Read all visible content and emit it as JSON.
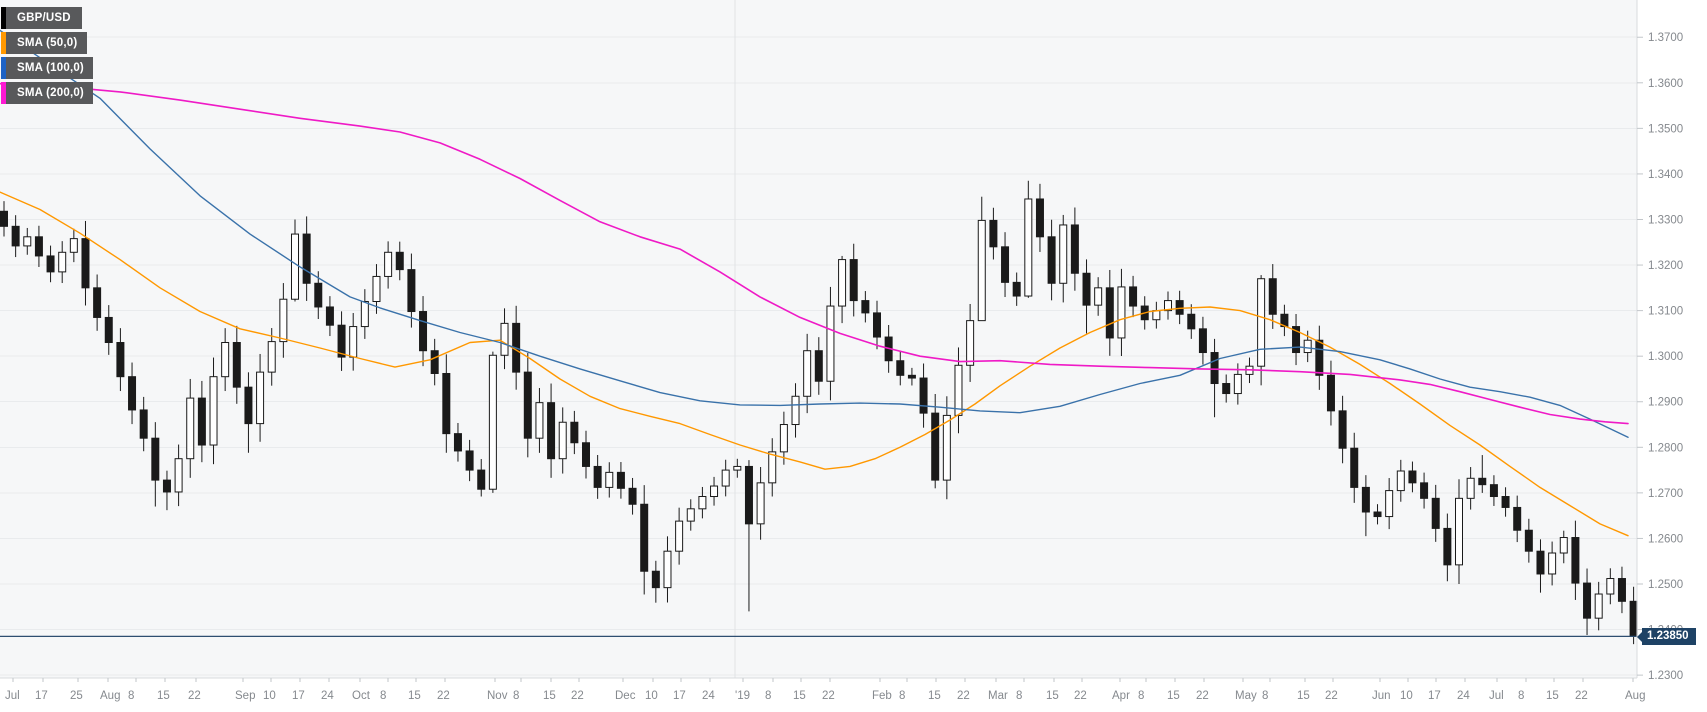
{
  "legend": {
    "items": [
      {
        "label": "GBP/USD",
        "swatch_color": "#000000"
      },
      {
        "label": "SMA (50,0)",
        "swatch_color": "#ff9800"
      },
      {
        "label": "SMA (100,0)",
        "swatch_color": "#1d62c4"
      },
      {
        "label": "SMA (200,0)",
        "swatch_color": "#fd18d2"
      }
    ]
  },
  "price_tag": {
    "value": "1.23850"
  },
  "price_axis": {
    "labels": [
      "1.3700",
      "1.3600",
      "1.3500",
      "1.3400",
      "1.3300",
      "1.3200",
      "1.3100",
      "1.3000",
      "1.2900",
      "1.2800",
      "1.2700",
      "1.2600",
      "1.2500",
      "1.2400",
      "1.2300"
    ]
  },
  "time_axis": {
    "labels": [
      [
        "Jul",
        5
      ],
      [
        "17",
        35
      ],
      [
        "25",
        70
      ],
      [
        "Aug",
        100
      ],
      [
        "8",
        128
      ],
      [
        "15",
        157
      ],
      [
        "22",
        188
      ],
      [
        "Sep",
        235
      ],
      [
        "10",
        263
      ],
      [
        "17",
        292
      ],
      [
        "24",
        321
      ],
      [
        "Oct",
        352
      ],
      [
        "8",
        380
      ],
      [
        "15",
        408
      ],
      [
        "22",
        437
      ],
      [
        "Nov",
        487
      ],
      [
        "8",
        513
      ],
      [
        "15",
        543
      ],
      [
        "22",
        571
      ],
      [
        "Dec",
        615
      ],
      [
        "10",
        645
      ],
      [
        "17",
        673
      ],
      [
        "24",
        702
      ],
      [
        "'19",
        735
      ],
      [
        "8",
        765
      ],
      [
        "15",
        793
      ],
      [
        "22",
        822
      ],
      [
        "Feb",
        872
      ],
      [
        "8",
        899
      ],
      [
        "15",
        928
      ],
      [
        "22",
        957
      ],
      [
        "Mar",
        988
      ],
      [
        "8",
        1016
      ],
      [
        "15",
        1046
      ],
      [
        "22",
        1074
      ],
      [
        "Apr",
        1112
      ],
      [
        "8",
        1138
      ],
      [
        "15",
        1167
      ],
      [
        "22",
        1196
      ],
      [
        "May",
        1235
      ],
      [
        "8",
        1262
      ],
      [
        "15",
        1297
      ],
      [
        "22",
        1325
      ],
      [
        "Jun",
        1372
      ],
      [
        "10",
        1400
      ],
      [
        "17",
        1428
      ],
      [
        "24",
        1457
      ],
      [
        "Jul",
        1489
      ],
      [
        "8",
        1518
      ],
      [
        "15",
        1546
      ],
      [
        "22",
        1575
      ],
      [
        "Aug",
        1625
      ]
    ],
    "year_break_x": 735
  },
  "style": {
    "plot_bg": "#f6f7f8",
    "grid": "#e9ebed",
    "year_grid": "#e1e3e5",
    "axis_line": "#d8dbde",
    "tick": "#c2c6ca",
    "axis_text": "#85898e",
    "candle_up": "#ffffff",
    "candle_down": "#1a1a1a",
    "candle_border": "#1a1a1a",
    "price_line": "#2e4e70",
    "tag_bg": "#1e4265",
    "tag_text": "#ffffff"
  },
  "chart_data": {
    "type": "candlestick",
    "symbol": "GBP/USD",
    "timeframe_hint": "daily, Jul 2018 - Aug 2019",
    "current_price": 1.2385,
    "ylim": [
      1.2295,
      1.3715
    ],
    "grid_step": 0.01,
    "candle_x_start": 4,
    "candle_x_step": 11.64,
    "open_first": 1.3318,
    "closes": [
      1.3285,
      1.3242,
      1.3262,
      1.322,
      1.3185,
      1.3228,
      1.3258,
      1.315,
      1.3085,
      1.303,
      1.2955,
      1.2882,
      1.282,
      1.2728,
      1.2702,
      1.2775,
      1.2908,
      1.2805,
      1.2955,
      1.303,
      1.2932,
      1.2852,
      1.2965,
      1.3032,
      1.3125,
      1.3268,
      1.316,
      1.3108,
      1.3068,
      1.2998,
      1.3065,
      1.312,
      1.3175,
      1.3228,
      1.319,
      1.3098,
      1.3012,
      1.2962,
      1.283,
      1.2792,
      1.275,
      1.2708,
      1.3002,
      1.3072,
      1.2965,
      1.282,
      1.2898,
      1.2775,
      1.2855,
      1.281,
      1.2758,
      1.2712,
      1.2745,
      1.271,
      1.2675,
      1.2528,
      1.2492,
      1.2572,
      1.2638,
      1.2665,
      1.2692,
      1.2715,
      1.275,
      1.2758,
      1.2632,
      1.2722,
      1.279,
      1.285,
      1.2912,
      1.3012,
      1.2945,
      1.311,
      1.3212,
      1.3122,
      1.3095,
      1.3042,
      1.299,
      1.2958,
      1.2952,
      1.2875,
      1.2728,
      1.287,
      1.298,
      1.3078,
      1.3298,
      1.324,
      1.3162,
      1.3132,
      1.3345,
      1.3262,
      1.316,
      1.3288,
      1.3182,
      1.3112,
      1.315,
      1.304,
      1.3152,
      1.311,
      1.308,
      1.31,
      1.3122,
      1.3092,
      1.306,
      1.3008,
      1.294,
      1.2918,
      1.296,
      1.2978,
      1.317,
      1.3092,
      1.3065,
      1.3008,
      1.3035,
      1.2958,
      1.288,
      1.2798,
      1.2712,
      1.2658,
      1.2648,
      1.2705,
      1.2748,
      1.2722,
      1.2688,
      1.2622,
      1.2542,
      1.2688,
      1.2732,
      1.2718,
      1.2692,
      1.2668,
      1.2618,
      1.2572,
      1.2522,
      1.2568,
      1.2602,
      1.2502,
      1.2425,
      1.2478,
      1.2512,
      1.2462,
      1.2385
    ],
    "wick_overrides": {
      "13": [
        null,
        1.267
      ],
      "14": [
        null,
        1.2662
      ],
      "21": [
        null,
        1.2788
      ],
      "25": [
        1.33,
        1.312
      ],
      "33": [
        1.3252,
        null
      ],
      "41": [
        null,
        1.2692
      ],
      "42": [
        1.301,
        1.27
      ],
      "43": [
        1.3105,
        null
      ],
      "47": [
        null,
        1.2733
      ],
      "55": [
        null,
        1.2477
      ],
      "56": [
        null,
        1.2459
      ],
      "64": [
        1.2772,
        1.244
      ],
      "72": [
        1.322,
        null
      ],
      "80": [
        null,
        1.271
      ],
      "84": [
        1.335,
        1.3095
      ],
      "88": [
        1.3385,
        1.3128
      ],
      "91": [
        1.331,
        null
      ],
      "93": [
        null,
        1.305
      ],
      "104": [
        null,
        1.2866
      ],
      "108": [
        1.3178,
        null
      ],
      "117": [
        null,
        1.2605
      ],
      "124": [
        null,
        1.2506
      ],
      "127": [
        1.2783,
        null
      ],
      "132": [
        null,
        1.2481
      ],
      "134": [
        1.2617,
        null
      ],
      "136": [
        null,
        1.2388
      ],
      "140": [
        null,
        1.2368
      ]
    },
    "overlays": [
      {
        "name": "SMA (50,0)",
        "color": "#ff9800",
        "width": 1.4,
        "points": [
          [
            0,
            1.336
          ],
          [
            40,
            1.3322
          ],
          [
            80,
            1.327
          ],
          [
            120,
            1.3212
          ],
          [
            160,
            1.315
          ],
          [
            200,
            1.3098
          ],
          [
            240,
            1.306
          ],
          [
            280,
            1.304
          ],
          [
            320,
            1.3018
          ],
          [
            360,
            1.2995
          ],
          [
            395,
            1.2976
          ],
          [
            430,
            1.2992
          ],
          [
            470,
            1.303
          ],
          [
            500,
            1.3035
          ],
          [
            530,
            1.2995
          ],
          [
            560,
            1.295
          ],
          [
            590,
            1.2912
          ],
          [
            620,
            1.2885
          ],
          [
            650,
            1.2868
          ],
          [
            680,
            1.2852
          ],
          [
            710,
            1.2828
          ],
          [
            740,
            1.2805
          ],
          [
            770,
            1.2785
          ],
          [
            800,
            1.2768
          ],
          [
            825,
            1.2752
          ],
          [
            850,
            1.2758
          ],
          [
            875,
            1.2775
          ],
          [
            900,
            1.28
          ],
          [
            925,
            1.2828
          ],
          [
            950,
            1.286
          ],
          [
            975,
            1.2895
          ],
          [
            1000,
            1.2935
          ],
          [
            1030,
            1.2978
          ],
          [
            1060,
            1.3018
          ],
          [
            1090,
            1.3052
          ],
          [
            1120,
            1.308
          ],
          [
            1150,
            1.3098
          ],
          [
            1180,
            1.3105
          ],
          [
            1210,
            1.3108
          ],
          [
            1240,
            1.31
          ],
          [
            1270,
            1.308
          ],
          [
            1300,
            1.3052
          ],
          [
            1330,
            1.302
          ],
          [
            1360,
            1.2982
          ],
          [
            1390,
            1.294
          ],
          [
            1420,
            1.2895
          ],
          [
            1450,
            1.2848
          ],
          [
            1480,
            1.2805
          ],
          [
            1510,
            1.2758
          ],
          [
            1540,
            1.2712
          ],
          [
            1570,
            1.2672
          ],
          [
            1600,
            1.2632
          ],
          [
            1628,
            1.2606
          ]
        ]
      },
      {
        "name": "SMA (100,0)",
        "color": "#3a72aa",
        "width": 1.4,
        "points": [
          [
            0,
            1.3715
          ],
          [
            50,
            1.364
          ],
          [
            100,
            1.3566
          ],
          [
            150,
            1.3455
          ],
          [
            200,
            1.3352
          ],
          [
            250,
            1.3268
          ],
          [
            300,
            1.3196
          ],
          [
            350,
            1.313
          ],
          [
            380,
            1.3106
          ],
          [
            420,
            1.3078
          ],
          [
            460,
            1.3052
          ],
          [
            500,
            1.303
          ],
          [
            540,
            1.3
          ],
          [
            580,
            1.2972
          ],
          [
            620,
            1.2946
          ],
          [
            660,
            1.292
          ],
          [
            700,
            1.2902
          ],
          [
            740,
            1.2893
          ],
          [
            780,
            1.2892
          ],
          [
            820,
            1.2895
          ],
          [
            860,
            1.2897
          ],
          [
            900,
            1.2895
          ],
          [
            940,
            1.2888
          ],
          [
            980,
            1.288
          ],
          [
            1020,
            1.2876
          ],
          [
            1060,
            1.289
          ],
          [
            1100,
            1.2916
          ],
          [
            1140,
            1.294
          ],
          [
            1180,
            1.2958
          ],
          [
            1220,
            1.2995
          ],
          [
            1260,
            1.3015
          ],
          [
            1300,
            1.302
          ],
          [
            1340,
            1.301
          ],
          [
            1380,
            1.2992
          ],
          [
            1410,
            1.2972
          ],
          [
            1440,
            1.295
          ],
          [
            1470,
            1.2932
          ],
          [
            1500,
            1.2922
          ],
          [
            1530,
            1.291
          ],
          [
            1560,
            1.2892
          ],
          [
            1590,
            1.2862
          ],
          [
            1628,
            1.2822
          ]
        ]
      },
      {
        "name": "SMA (200,0)",
        "color": "#ef1ac6",
        "width": 1.6,
        "points": [
          [
            0,
            1.3598
          ],
          [
            60,
            1.3592
          ],
          [
            120,
            1.358
          ],
          [
            180,
            1.3562
          ],
          [
            240,
            1.3542
          ],
          [
            300,
            1.3522
          ],
          [
            360,
            1.3505
          ],
          [
            400,
            1.3492
          ],
          [
            440,
            1.3468
          ],
          [
            480,
            1.3432
          ],
          [
            520,
            1.339
          ],
          [
            560,
            1.3342
          ],
          [
            600,
            1.3295
          ],
          [
            640,
            1.3262
          ],
          [
            680,
            1.3235
          ],
          [
            720,
            1.3185
          ],
          [
            760,
            1.313
          ],
          [
            800,
            1.3085
          ],
          [
            840,
            1.305
          ],
          [
            880,
            1.3022
          ],
          [
            920,
            1.3
          ],
          [
            960,
            1.2988
          ],
          [
            1000,
            1.299
          ],
          [
            1050,
            1.2982
          ],
          [
            1100,
            1.2978
          ],
          [
            1150,
            1.2975
          ],
          [
            1200,
            1.2972
          ],
          [
            1250,
            1.297
          ],
          [
            1300,
            1.2966
          ],
          [
            1350,
            1.296
          ],
          [
            1400,
            1.2948
          ],
          [
            1430,
            1.2938
          ],
          [
            1460,
            1.2922
          ],
          [
            1490,
            1.2905
          ],
          [
            1520,
            1.2888
          ],
          [
            1550,
            1.2872
          ],
          [
            1580,
            1.2862
          ],
          [
            1605,
            1.2856
          ],
          [
            1628,
            1.2852
          ]
        ]
      }
    ]
  }
}
